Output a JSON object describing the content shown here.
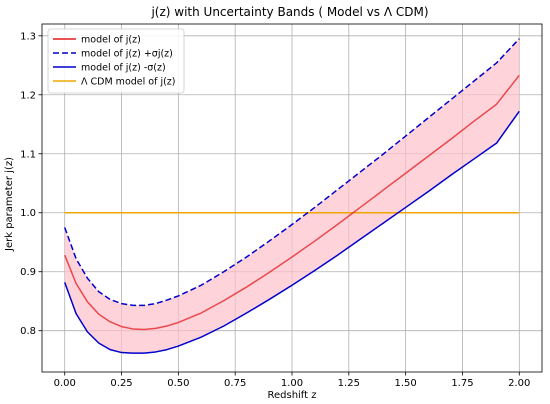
{
  "chart_data": {
    "type": "line",
    "title": "j(z) with Uncertainty Bands ( Model vs Λ CDM)",
    "xlabel": "Redshift z",
    "ylabel": "Jerk parameter j(z)",
    "xlim": [
      -0.1,
      2.1
    ],
    "ylim": [
      0.73,
      1.32
    ],
    "xticks": [
      0.0,
      0.25,
      0.5,
      0.75,
      1.0,
      1.25,
      1.5,
      1.75,
      2.0
    ],
    "xtick_labels": [
      "0.00",
      "0.25",
      "0.50",
      "0.75",
      "1.00",
      "1.25",
      "1.50",
      "1.75",
      "2.00"
    ],
    "yticks": [
      0.8,
      0.9,
      1.0,
      1.1,
      1.2,
      1.3
    ],
    "ytick_labels": [
      "0.8",
      "0.9",
      "1.0",
      "1.1",
      "1.2",
      "1.3"
    ],
    "grid": true,
    "legend_position": "top-left",
    "band": {
      "color": "#ffc0cb",
      "lower_series": 2,
      "upper_series": 1
    },
    "series": [
      {
        "name": "model of j(z)",
        "color": "#e41a1c",
        "style": "solid",
        "x": [
          0.0,
          0.05,
          0.1,
          0.15,
          0.2,
          0.25,
          0.3,
          0.35,
          0.4,
          0.45,
          0.5,
          0.6,
          0.7,
          0.8,
          0.9,
          1.0,
          1.1,
          1.2,
          1.3,
          1.4,
          1.5,
          1.6,
          1.7,
          1.8,
          1.9,
          2.0
        ],
        "y": [
          0.928,
          0.88,
          0.849,
          0.828,
          0.815,
          0.807,
          0.803,
          0.802,
          0.804,
          0.808,
          0.814,
          0.83,
          0.851,
          0.874,
          0.899,
          0.925,
          0.952,
          0.98,
          1.009,
          1.038,
          1.067,
          1.096,
          1.125,
          1.155,
          1.184,
          1.233
        ]
      },
      {
        "name": "model of j(z) +σj(z)",
        "color": "#0000cc",
        "style": "dashed",
        "x": [
          0.0,
          0.05,
          0.1,
          0.15,
          0.2,
          0.25,
          0.3,
          0.35,
          0.4,
          0.45,
          0.5,
          0.6,
          0.7,
          0.8,
          0.9,
          1.0,
          1.1,
          1.2,
          1.3,
          1.4,
          1.5,
          1.6,
          1.7,
          1.8,
          1.9,
          2.0
        ],
        "y": [
          0.975,
          0.922,
          0.889,
          0.866,
          0.853,
          0.846,
          0.843,
          0.843,
          0.846,
          0.852,
          0.859,
          0.877,
          0.9,
          0.925,
          0.952,
          0.98,
          1.009,
          1.039,
          1.069,
          1.099,
          1.13,
          1.161,
          1.192,
          1.223,
          1.254,
          1.295
        ]
      },
      {
        "name": "model of j(z) -σ(z)",
        "color": "#0000cc",
        "style": "solid",
        "x": [
          0.0,
          0.05,
          0.1,
          0.15,
          0.2,
          0.25,
          0.3,
          0.35,
          0.4,
          0.45,
          0.5,
          0.6,
          0.7,
          0.8,
          0.9,
          1.0,
          1.1,
          1.2,
          1.3,
          1.4,
          1.5,
          1.6,
          1.7,
          1.8,
          1.9,
          2.0
        ],
        "y": [
          0.882,
          0.829,
          0.798,
          0.779,
          0.768,
          0.763,
          0.762,
          0.762,
          0.764,
          0.768,
          0.774,
          0.789,
          0.808,
          0.83,
          0.853,
          0.877,
          0.902,
          0.928,
          0.955,
          0.982,
          1.009,
          1.036,
          1.064,
          1.091,
          1.118,
          1.172
        ]
      },
      {
        "name": "Λ CDM model of j(z)",
        "color": "#f0a500",
        "style": "solid",
        "x": [
          0.0,
          2.0
        ],
        "y": [
          1.0,
          1.0
        ]
      }
    ]
  }
}
